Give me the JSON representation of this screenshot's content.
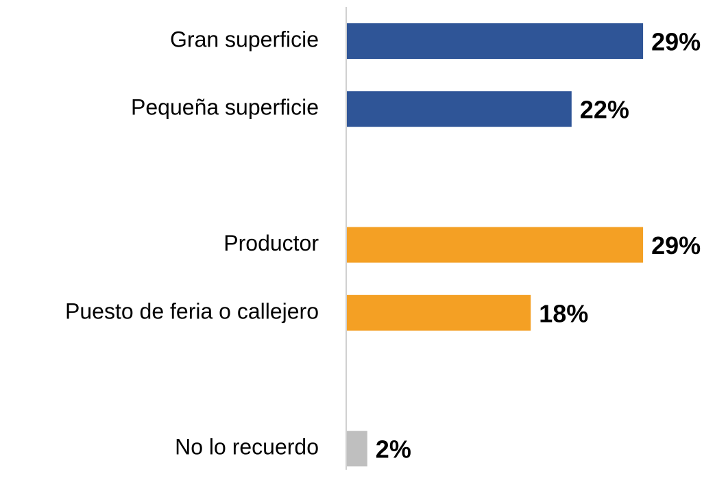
{
  "chart_data": {
    "type": "bar",
    "orientation": "horizontal",
    "categories": [
      "Gran superficie",
      "Pequeña superficie",
      null,
      "Productor",
      "Puesto de feria o callejero",
      null,
      "No lo recuerdo"
    ],
    "values": [
      29,
      22,
      null,
      29,
      18,
      null,
      2
    ],
    "value_labels": [
      "29%",
      "22%",
      null,
      "29%",
      "18%",
      null,
      "2%"
    ],
    "colors": [
      "#2f5597",
      "#2f5597",
      null,
      "#f4a024",
      "#f4a024",
      null,
      "#bfbfbf"
    ]
  }
}
